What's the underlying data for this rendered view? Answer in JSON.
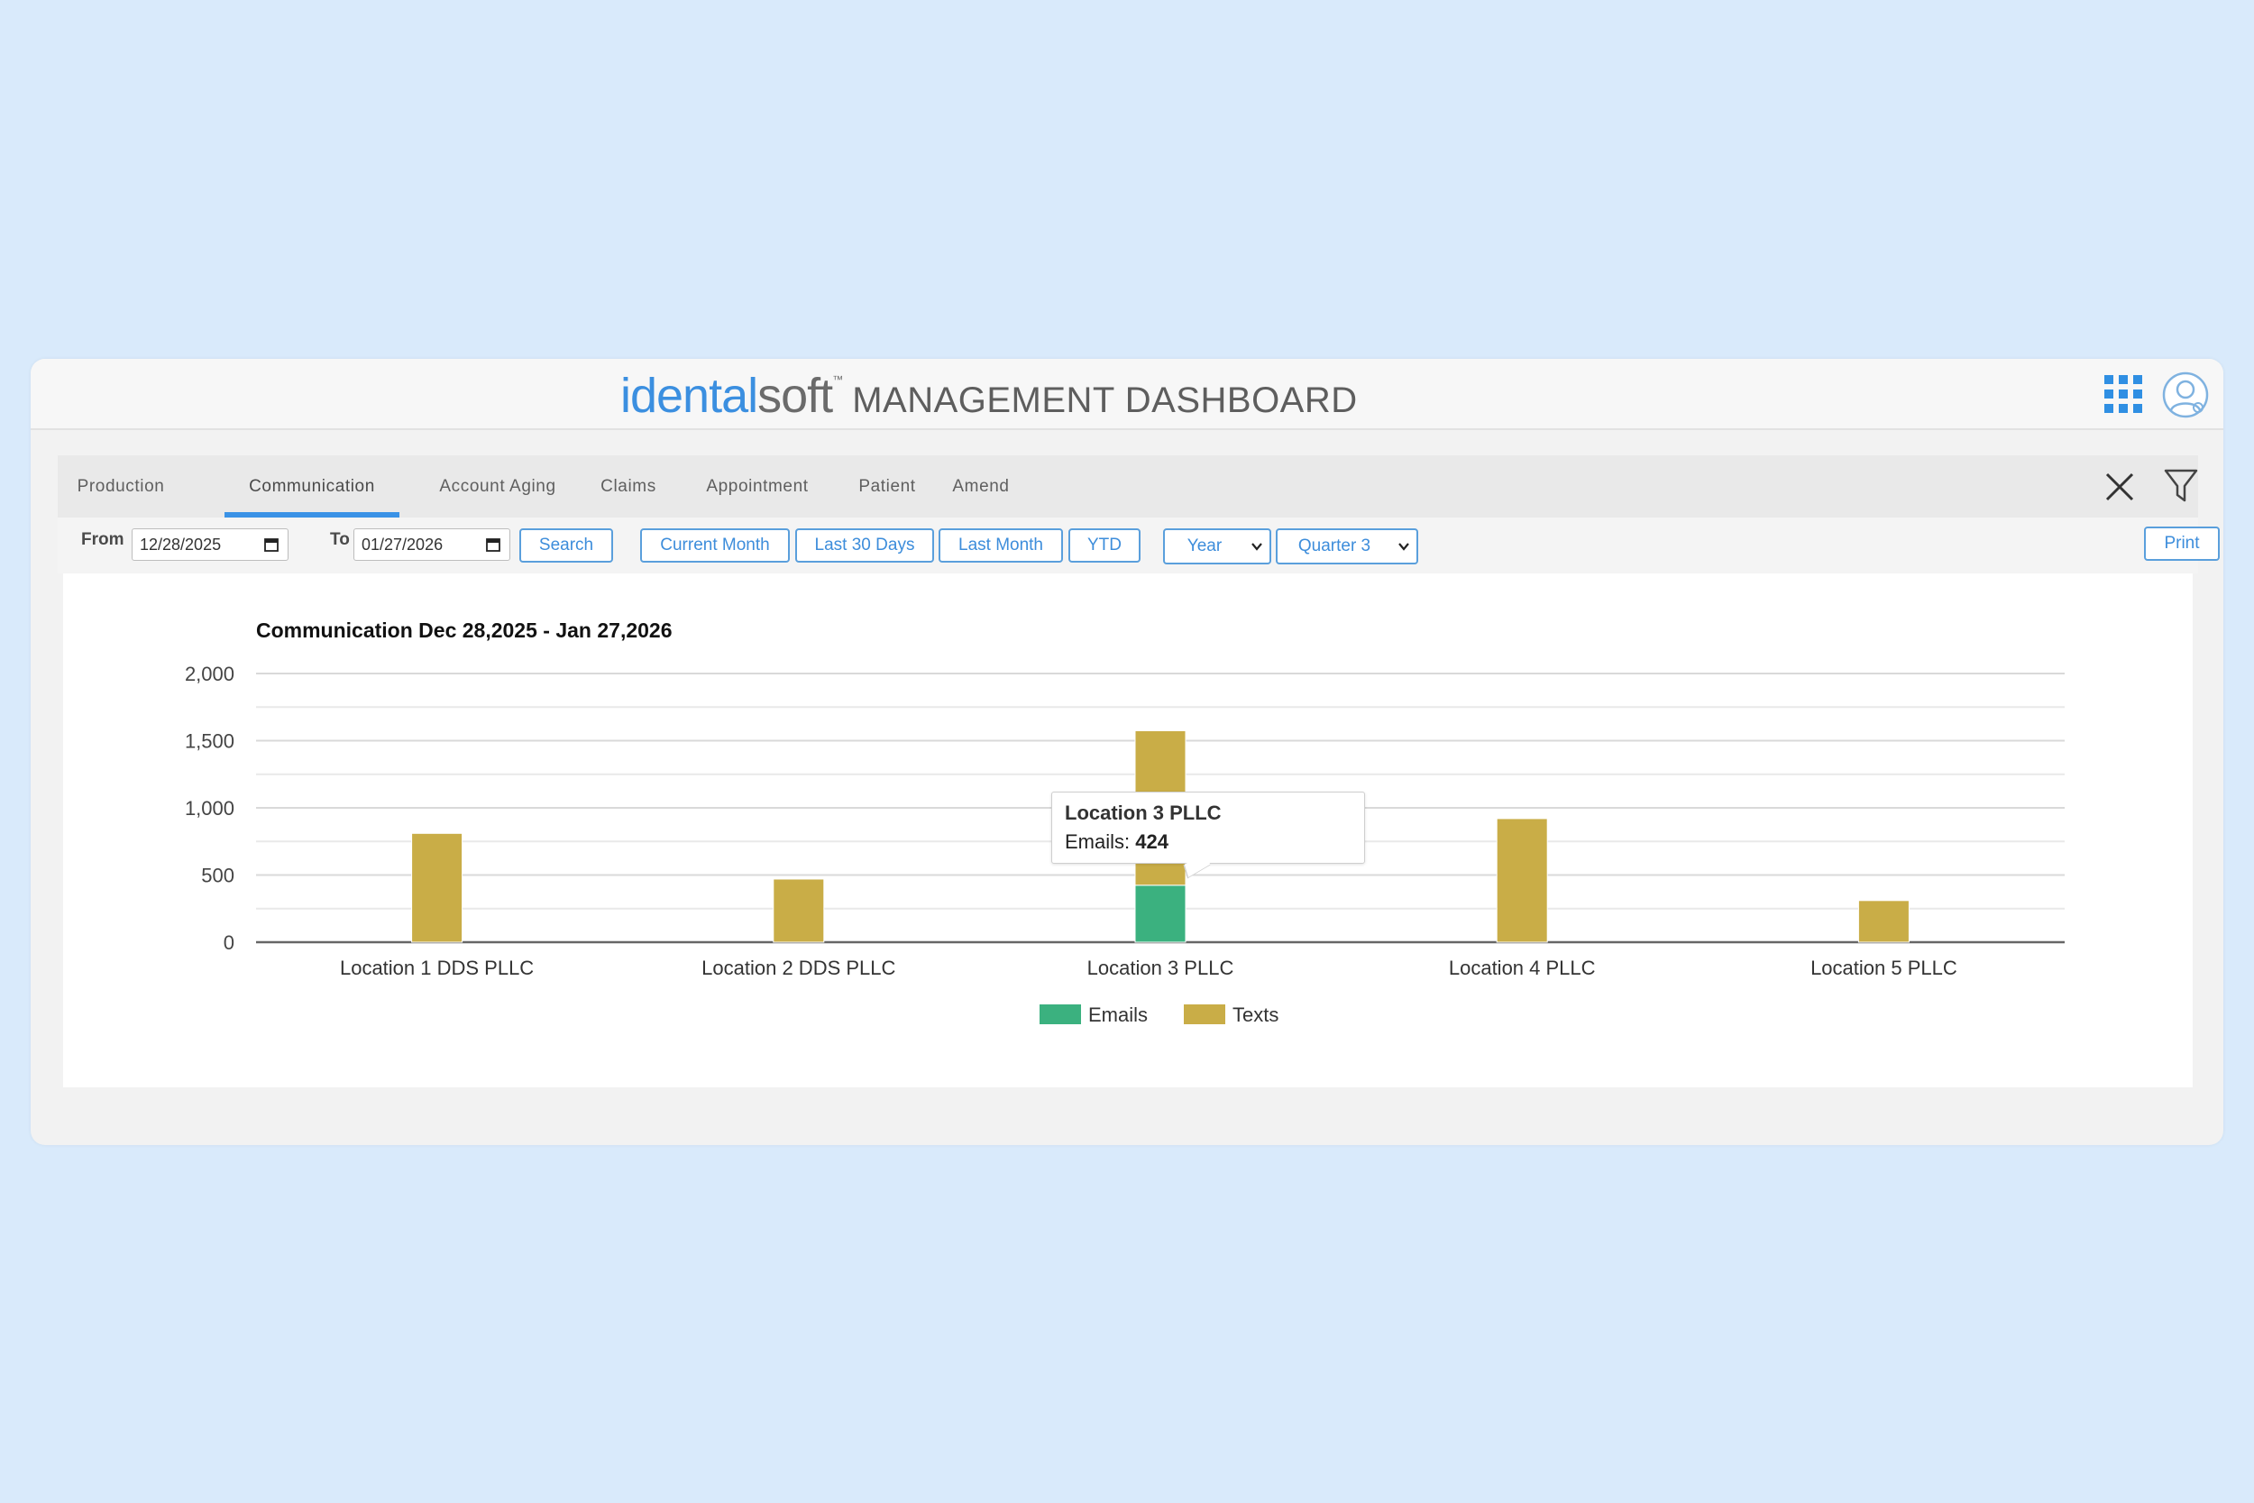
{
  "header": {
    "brand_i": "identalsoft",
    "brand_prefix": "identa",
    "brand_l": "l",
    "brand_soft": "soft",
    "brand_tm": "™",
    "title": "MANAGEMENT DASHBOARD"
  },
  "tabs": [
    {
      "label": "Production",
      "active": false
    },
    {
      "label": "Communication",
      "active": true
    },
    {
      "label": "Account Aging",
      "active": false
    },
    {
      "label": "Claims",
      "active": false
    },
    {
      "label": "Appointment",
      "active": false
    },
    {
      "label": "Patient",
      "active": false
    },
    {
      "label": "Amend",
      "active": false
    }
  ],
  "toolbar": {
    "from_label": "From",
    "from_value": "12/28/2025",
    "to_label": "To",
    "to_value": "01/27/2026",
    "search_label": "Search",
    "presets": [
      "Current Month",
      "Last 30 Days",
      "Last Month",
      "YTD"
    ],
    "year_select": "Year",
    "quarter_select": "Quarter 3",
    "print_label": "Print"
  },
  "tooltip": {
    "title": "Location 3 PLLC",
    "series": "Emails",
    "value": "424"
  },
  "colors": {
    "emails": "#3bb17f",
    "texts": "#c9ad47",
    "accent": "#3a92e6"
  },
  "chart_data": {
    "type": "bar",
    "stacked": true,
    "title": "Communication Dec 28,2025 - Jan 27,2026",
    "xlabel": "",
    "ylabel": "",
    "categories": [
      "Location 1 DDS PLLC",
      "Location 2 DDS PLLC",
      "Location 3 PLLC",
      "Location 4 PLLC",
      "Location 5 PLLC"
    ],
    "series": [
      {
        "name": "Emails",
        "values": [
          0,
          0,
          424,
          0,
          0
        ]
      },
      {
        "name": "Texts",
        "values": [
          810,
          470,
          1150,
          920,
          310
        ]
      }
    ],
    "ylim": [
      0,
      2000
    ],
    "yticks": [
      "0",
      "500",
      "1,000",
      "1,500",
      "2,000"
    ],
    "grid": true,
    "legend": "bottom-center"
  }
}
